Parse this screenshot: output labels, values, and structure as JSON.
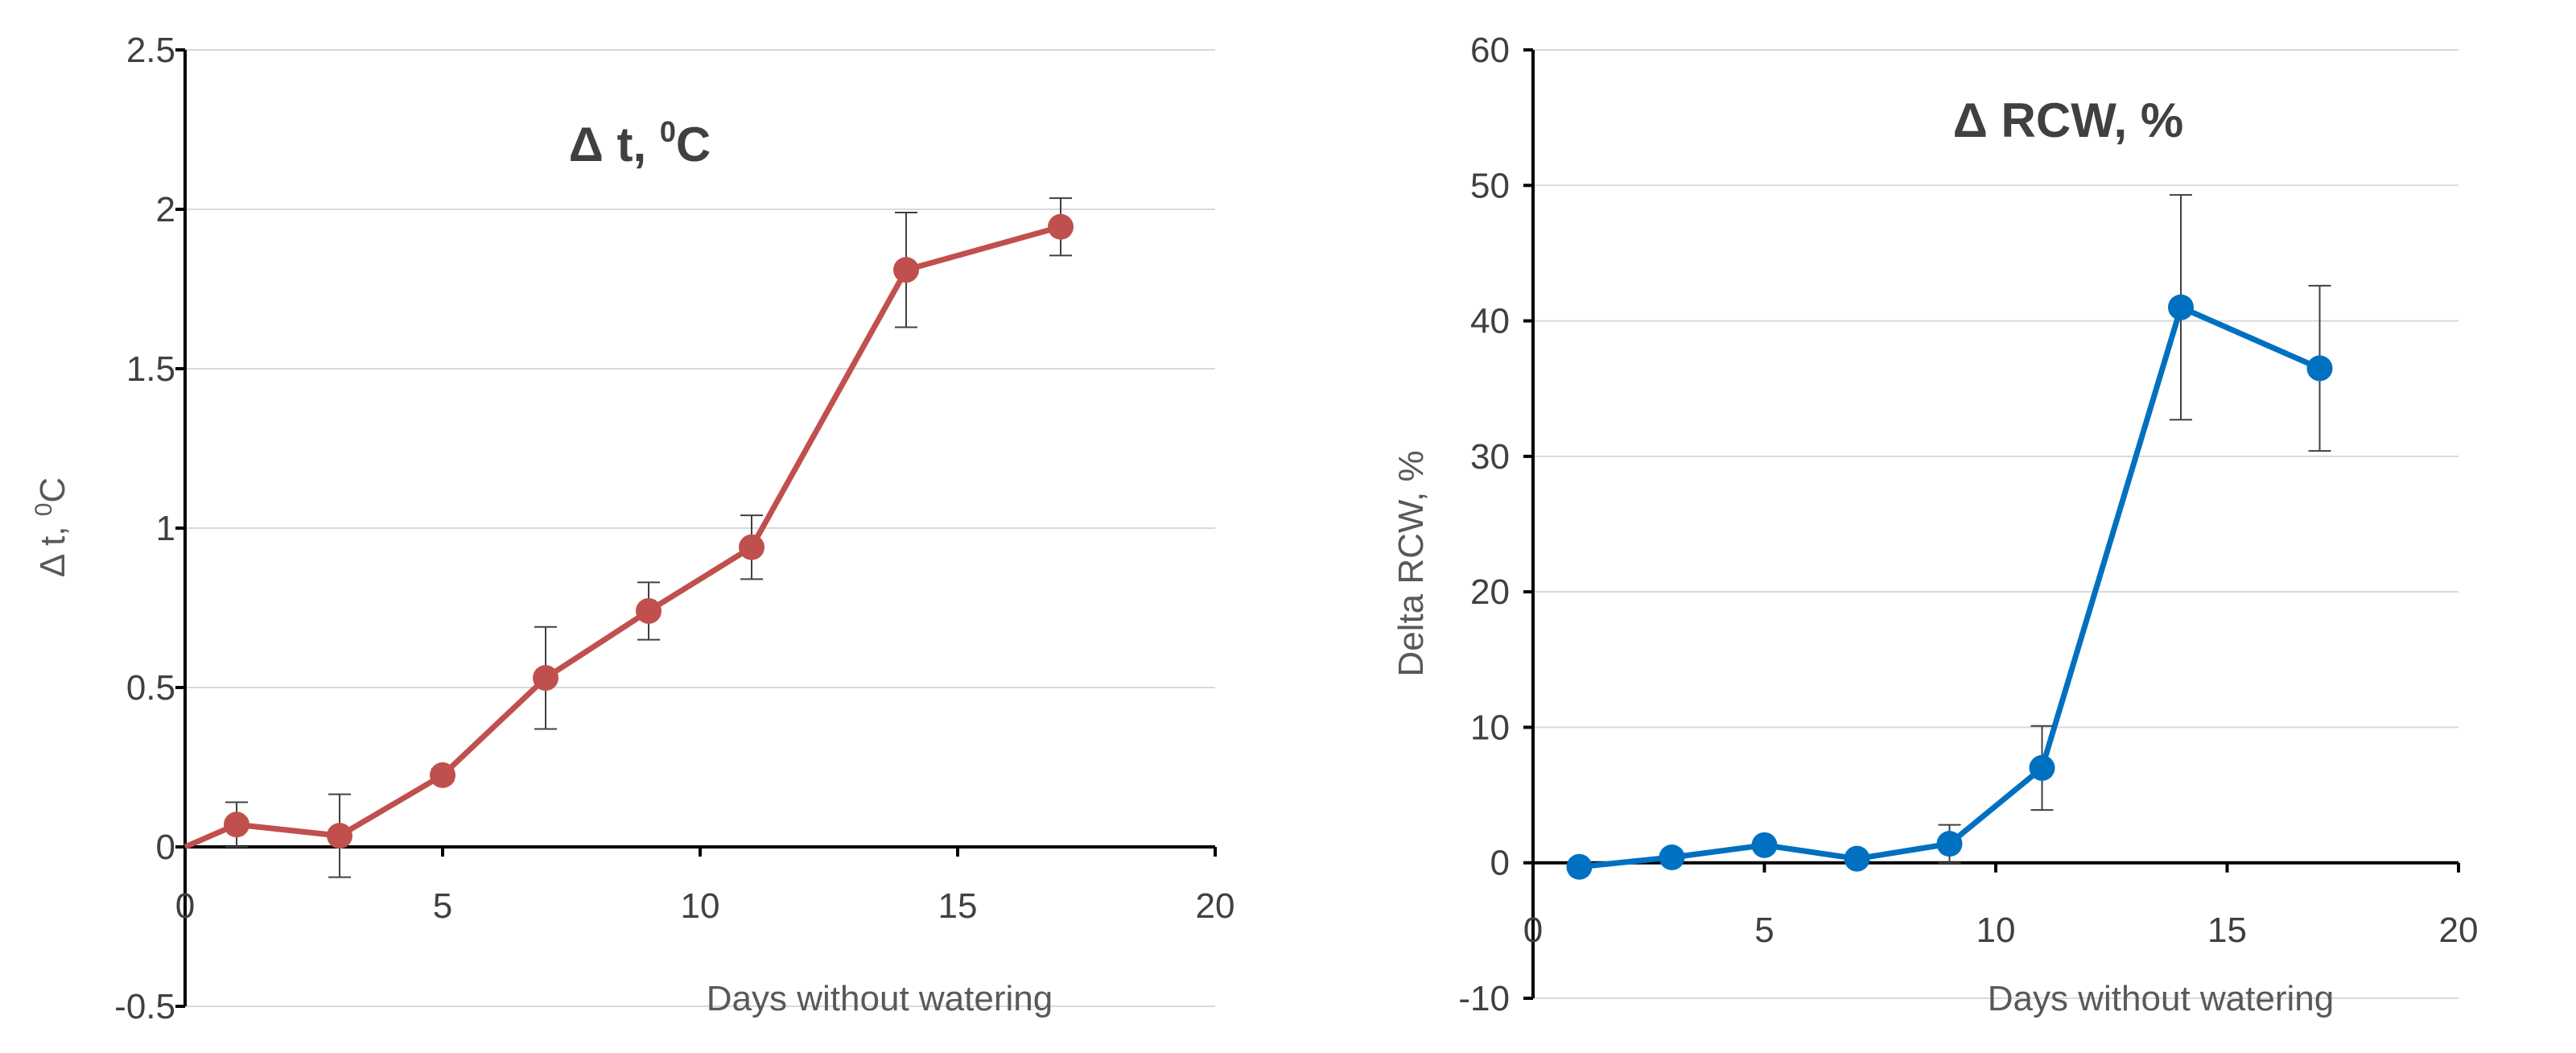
{
  "chart_data": [
    {
      "type": "line",
      "title": "Δ t, ⁰C",
      "title_main": "Δ t, ",
      "title_sup": "0",
      "title_unit": "C",
      "xlabel": "Days without watering",
      "ylabel": "Δ t, ⁰C",
      "ylabel_main": "Δ t, ",
      "ylabel_sup": "0",
      "ylabel_unit": "C",
      "xlim": [
        0,
        20
      ],
      "ylim": [
        -0.5,
        2.5
      ],
      "xticks": [
        0,
        5,
        10,
        15,
        20
      ],
      "xtick_labels": [
        "0",
        "5",
        "10",
        "15",
        "20"
      ],
      "yticks": [
        -0.5,
        0,
        0.5,
        1,
        1.5,
        2,
        2.5
      ],
      "ytick_labels": [
        "-0.5",
        "0",
        "0.5",
        "1",
        "1.5",
        "2",
        "2.5"
      ],
      "grid": true,
      "color": "#c0504d",
      "series": [
        {
          "name": "Δ t",
          "x": [
            1,
            3,
            5,
            7,
            9,
            11,
            14,
            17
          ],
          "y": [
            0.07,
            0.035,
            0.225,
            0.53,
            0.74,
            0.94,
            1.81,
            1.945
          ],
          "err": [
            0.07,
            0.13,
            0.02,
            0.16,
            0.09,
            0.1,
            0.18,
            0.09
          ]
        }
      ],
      "line_origin": [
        0,
        0
      ]
    },
    {
      "type": "line",
      "title": "Δ RCW, %",
      "xlabel": "Days without watering",
      "ylabel": "Delta RCW, %",
      "xlim": [
        0,
        20
      ],
      "ylim": [
        -10,
        60
      ],
      "xticks": [
        0,
        5,
        10,
        15,
        20
      ],
      "xtick_labels": [
        "0",
        "5",
        "10",
        "15",
        "20"
      ],
      "yticks": [
        -10,
        0,
        10,
        20,
        30,
        40,
        50,
        60
      ],
      "ytick_labels": [
        "-10",
        "0",
        "10",
        "20",
        "30",
        "40",
        "50",
        "60"
      ],
      "grid": true,
      "color": "#0070c0",
      "series": [
        {
          "name": "Δ RCW",
          "x": [
            1,
            3,
            5,
            7,
            9,
            11,
            14,
            17
          ],
          "y": [
            -0.3,
            0.4,
            1.3,
            0.3,
            1.4,
            7,
            41,
            36.5
          ],
          "err": [
            0,
            0,
            0.3,
            0,
            1.4,
            3.1,
            8.3,
            6.1
          ]
        }
      ]
    }
  ]
}
